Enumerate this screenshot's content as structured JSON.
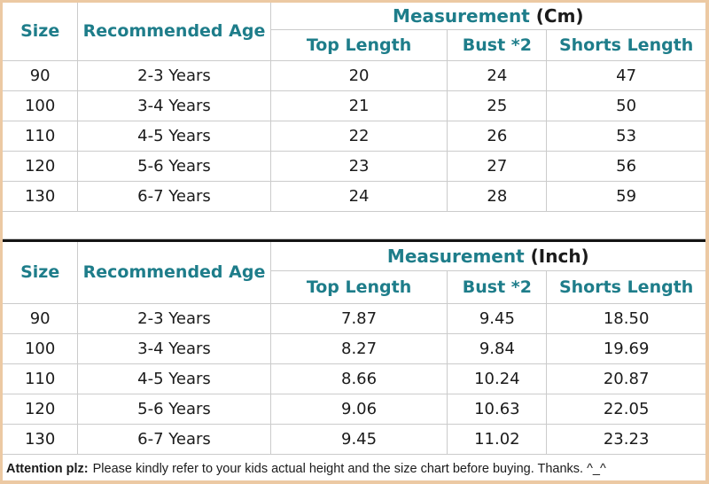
{
  "colors": {
    "header_teal": "#1e7d8a",
    "body_text": "#1b1b1b",
    "outer_border_tan": "#ecc9a3",
    "grid_line": "#cbcbcb",
    "separator_black": "#141414",
    "background": "#ffffff"
  },
  "tables": [
    {
      "size_header": "Size",
      "age_header": "Recommended Age",
      "measurement_label": "Measurement",
      "unit_label": "(Cm)",
      "sub_headers": [
        "Top Length",
        "Bust *2",
        "Shorts Length"
      ],
      "rows": [
        {
          "size": "90",
          "age": "2-3 Years",
          "top": "20",
          "bust": "24",
          "shorts": "47"
        },
        {
          "size": "100",
          "age": "3-4 Years",
          "top": "21",
          "bust": "25",
          "shorts": "50"
        },
        {
          "size": "110",
          "age": "4-5 Years",
          "top": "22",
          "bust": "26",
          "shorts": "53"
        },
        {
          "size": "120",
          "age": "5-6 Years",
          "top": "23",
          "bust": "27",
          "shorts": "56"
        },
        {
          "size": "130",
          "age": "6-7 Years",
          "top": "24",
          "bust": "28",
          "shorts": "59"
        }
      ]
    },
    {
      "size_header": "Size",
      "age_header": "Recommended Age",
      "measurement_label": "Measurement",
      "unit_label": "(Inch)",
      "sub_headers": [
        "Top Length",
        "Bust *2",
        "Shorts Length"
      ],
      "rows": [
        {
          "size": "90",
          "age": "2-3 Years",
          "top": "7.87",
          "bust": "9.45",
          "shorts": "18.50"
        },
        {
          "size": "100",
          "age": "3-4 Years",
          "top": "8.27",
          "bust": "9.84",
          "shorts": "19.69"
        },
        {
          "size": "110",
          "age": "4-5 Years",
          "top": "8.66",
          "bust": "10.24",
          "shorts": "20.87"
        },
        {
          "size": "120",
          "age": "5-6 Years",
          "top": "9.06",
          "bust": "10.63",
          "shorts": "22.05"
        },
        {
          "size": "130",
          "age": "6-7 Years",
          "top": "9.45",
          "bust": "11.02",
          "shorts": "23.23"
        }
      ]
    }
  ],
  "footer": {
    "attention_label": "Attention plz:",
    "text": "Please kindly refer to your kids actual height and the size chart before buying. Thanks. ^_^"
  }
}
